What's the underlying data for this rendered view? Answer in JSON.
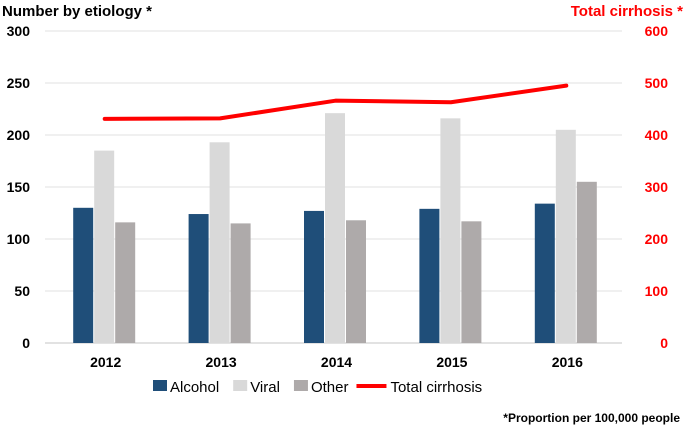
{
  "chart_data": {
    "type": "bar+line",
    "left_title": "Number by etiology *",
    "right_title": "Total cirrhosis *",
    "footnote": "*Proportion per 100,000 people",
    "categories": [
      "2012",
      "2013",
      "2014",
      "2015",
      "2016"
    ],
    "ylim_left": [
      0,
      300
    ],
    "ylim_right": [
      0,
      600
    ],
    "left_ticks": [
      "0",
      "50",
      "100",
      "150",
      "200",
      "250",
      "300"
    ],
    "right_ticks": [
      "0",
      "100",
      "200",
      "300",
      "400",
      "500",
      "600"
    ],
    "grid": true,
    "legend_placement": "bottom",
    "series": [
      {
        "name": "Alcohol",
        "type": "bar",
        "axis": "left",
        "color": "#1f4e79",
        "values": [
          130,
          124,
          127,
          129,
          134
        ]
      },
      {
        "name": "Viral",
        "type": "bar",
        "axis": "left",
        "color": "#d9d9d9",
        "values": [
          185,
          193,
          221,
          216,
          205
        ]
      },
      {
        "name": "Other",
        "type": "bar",
        "axis": "left",
        "color": "#aeaaaa",
        "values": [
          116,
          115,
          118,
          117,
          155
        ]
      },
      {
        "name": "Total cirrhosis",
        "type": "line",
        "axis": "right",
        "color": "#ff0000",
        "values": [
          431,
          432,
          466,
          463,
          495
        ]
      }
    ],
    "right_axis_color": "#ff0000"
  }
}
